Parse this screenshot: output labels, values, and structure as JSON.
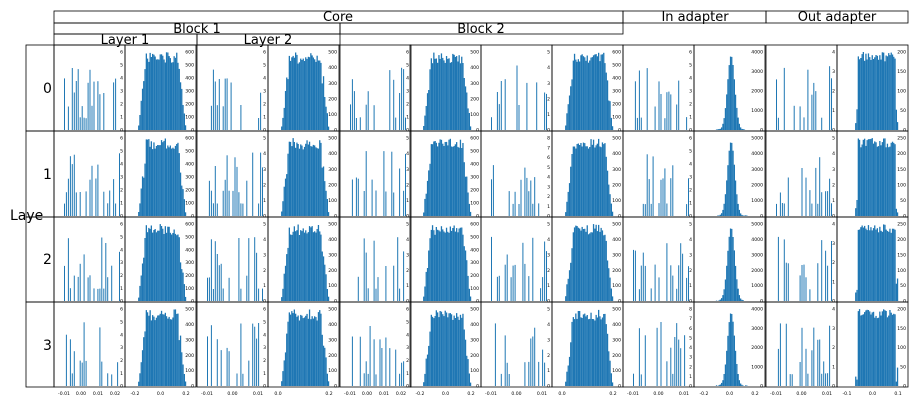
{
  "header": {
    "core": "Core",
    "block1": "Block 1",
    "block2": "Block 2",
    "layer1": "Layer 1",
    "layer2": "Layer 2",
    "in_adapter": "In adapter",
    "out_adapter": "Out adapter"
  },
  "row_axis_label": "Laye",
  "chart_data": {
    "type": "bar",
    "grid": false,
    "color": "#1f77b4",
    "rows": [
      {
        "label": "0"
      },
      {
        "label": "1"
      },
      {
        "label": "2"
      },
      {
        "label": "3"
      }
    ],
    "columns": [
      {
        "group": "Block 1 / Layer 1",
        "kind": "sparse",
        "xticks": [
          "-0.01",
          "0.00",
          "0.01",
          "0.02"
        ],
        "xlim": [
          -0.02,
          0.02
        ]
      },
      {
        "group": "Block 1 / Layer 1",
        "kind": "dense",
        "xticks": [
          "-0.2",
          "0.0",
          "0.2"
        ],
        "xlim": [
          -0.2,
          0.2
        ]
      },
      {
        "group": "Block 1 / Layer 2",
        "kind": "sparse",
        "xticks": [
          "-0.01",
          "0.00",
          "0.01"
        ],
        "xlim": [
          -0.02,
          0.02
        ]
      },
      {
        "group": "Block 1 / Layer 2",
        "kind": "dense",
        "xticks": [
          "0.0",
          "0.2"
        ],
        "xlim": [
          -0.2,
          0.2
        ]
      },
      {
        "group": "Block 2",
        "kind": "sparse",
        "xticks": [
          "-0.01",
          "0.00",
          "0.01",
          "0.02"
        ],
        "xlim": [
          -0.02,
          0.02
        ]
      },
      {
        "group": "Block 2",
        "kind": "dense",
        "xticks": [
          "-0.2",
          "0.0",
          "0.2"
        ],
        "xlim": [
          -0.2,
          0.2
        ]
      },
      {
        "group": "Block 2",
        "kind": "sparse",
        "xticks": [
          "-0.01",
          "0.00",
          "0.01"
        ],
        "xlim": [
          -0.02,
          0.02
        ]
      },
      {
        "group": "Block 2",
        "kind": "dense",
        "xticks": [
          "0.0",
          "0.2"
        ],
        "xlim": [
          -0.2,
          0.2
        ]
      },
      {
        "group": "In adapter",
        "kind": "sparse",
        "xticks": [
          "-0.01",
          "0.00",
          "0.01"
        ],
        "xlim": [
          -0.02,
          0.02
        ]
      },
      {
        "group": "In adapter",
        "kind": "peak",
        "xticks": [
          "-0.2",
          "0.0",
          "0.2"
        ],
        "xlim": [
          -0.2,
          0.2
        ]
      },
      {
        "group": "Out adapter",
        "kind": "sparse",
        "xticks": [
          "-0.01",
          "0.00",
          "0.01"
        ],
        "xlim": [
          -0.02,
          0.02
        ]
      },
      {
        "group": "Out adapter",
        "kind": "uniform",
        "xticks": [
          "-0.1",
          "0.0",
          "0.1"
        ],
        "xlim": [
          -0.15,
          0.15
        ]
      }
    ],
    "yticks": [
      [
        [
          "0",
          "1",
          "2",
          "3",
          "4",
          "5",
          "6"
        ],
        [
          "0",
          "100",
          "200",
          "300",
          "400",
          "500",
          "600"
        ],
        [
          "0",
          "1",
          "2",
          "3",
          "4",
          "5",
          "6"
        ],
        [
          "0",
          "100",
          "200",
          "300",
          "400",
          "500"
        ],
        [
          "0",
          "1",
          "2",
          "3",
          "4",
          "5",
          "6"
        ],
        [
          "0",
          "100",
          "200",
          "300",
          "400",
          "500"
        ],
        [
          "0",
          "1",
          "2",
          "3",
          "4",
          "5"
        ],
        [
          "0",
          "100",
          "200",
          "300",
          "400",
          "500",
          "600"
        ],
        [
          "0",
          "1",
          "2",
          "3",
          "4",
          "5",
          "6"
        ],
        [
          "0",
          "1000",
          "2000",
          "3000",
          "4000"
        ],
        [
          "0",
          "1",
          "2",
          "3",
          "4"
        ],
        [
          "0",
          "50",
          "100",
          "150",
          "200"
        ]
      ],
      [
        [
          "0",
          "1",
          "2",
          "3",
          "4",
          "5",
          "6"
        ],
        [
          "0",
          "100",
          "200",
          "300",
          "400",
          "500",
          "600"
        ],
        [
          "0",
          "1",
          "2",
          "3",
          "4",
          "5"
        ],
        [
          "0",
          "100",
          "200",
          "300",
          "400",
          "500"
        ],
        [
          "0",
          "1",
          "2",
          "3",
          "4",
          "5"
        ],
        [
          "0",
          "100",
          "200",
          "300",
          "400",
          "500",
          "600"
        ],
        [
          "0",
          "1",
          "2",
          "3",
          "4",
          "5",
          "6",
          "7",
          "8"
        ],
        [
          "0",
          "100",
          "200",
          "300",
          "400",
          "500"
        ],
        [
          "0",
          "1",
          "2",
          "3",
          "4",
          "5",
          "6"
        ],
        [
          "0",
          "1000",
          "2000",
          "3000",
          "4000",
          "5000"
        ],
        [
          "0",
          "1",
          "2",
          "3",
          "4",
          "5"
        ],
        [
          "0",
          "50",
          "100",
          "150",
          "200",
          "250"
        ]
      ],
      [
        [
          "0",
          "1",
          "2",
          "3",
          "4",
          "5",
          "6"
        ],
        [
          "0",
          "100",
          "200",
          "300",
          "400",
          "500",
          "600"
        ],
        [
          "0",
          "1",
          "2",
          "3",
          "4",
          "5"
        ],
        [
          "0",
          "100",
          "200",
          "300",
          "400",
          "500"
        ],
        [
          "0",
          "1",
          "2",
          "3",
          "4",
          "5"
        ],
        [
          "0",
          "100",
          "200",
          "300",
          "400",
          "500",
          "600"
        ],
        [
          "0",
          "1",
          "2",
          "3",
          "4",
          "5"
        ],
        [
          "0",
          "100",
          "200",
          "300",
          "400",
          "500"
        ],
        [
          "0",
          "1",
          "2",
          "3",
          "4",
          "5"
        ],
        [
          "0",
          "1000",
          "2000",
          "3000",
          "4000",
          "5000"
        ],
        [
          "0",
          "1",
          "2",
          "3",
          "4"
        ],
        [
          "0",
          "50",
          "100",
          "150",
          "200",
          "250"
        ]
      ],
      [
        [
          "0",
          "1",
          "2",
          "3",
          "4",
          "5",
          "6"
        ],
        [
          "0",
          "100",
          "200",
          "300",
          "400",
          "500"
        ],
        [
          "0",
          "1",
          "2",
          "3",
          "4",
          "5",
          "6"
        ],
        [
          "0",
          "100",
          "200",
          "300",
          "400",
          "500"
        ],
        [
          "0",
          "1",
          "2",
          "3",
          "4",
          "5",
          "6"
        ],
        [
          "0",
          "100",
          "200",
          "300",
          "400",
          "500"
        ],
        [
          "0",
          "1",
          "2",
          "3",
          "4",
          "5"
        ],
        [
          "0",
          "100",
          "200",
          "300",
          "400",
          "500"
        ],
        [
          "0",
          "1",
          "2",
          "3",
          "4",
          "5",
          "6",
          "7",
          "8"
        ],
        [
          "0",
          "1000",
          "2000",
          "3000",
          "4000"
        ],
        [
          "0",
          "1",
          "2",
          "3",
          "4"
        ],
        [
          "0",
          "50",
          "100",
          "150",
          "200"
        ]
      ]
    ]
  }
}
